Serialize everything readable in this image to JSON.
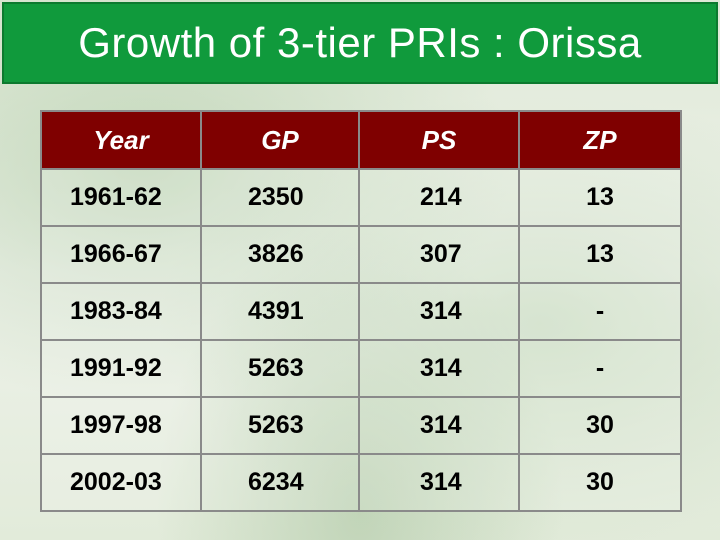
{
  "title": "Growth of 3-tier PRIs : Orissa",
  "table": {
    "headers": [
      "Year",
      "GP",
      "PS",
      "ZP"
    ],
    "rows": [
      [
        "1961-62",
        "2350",
        "214",
        "13"
      ],
      [
        "1966-67",
        "3826",
        "307",
        "13"
      ],
      [
        "1983-84",
        "4391",
        "314",
        "-"
      ],
      [
        "1991-92",
        "5263",
        "314",
        "-"
      ],
      [
        "1997-98",
        "5263",
        "314",
        "30"
      ],
      [
        "2002-03",
        "6234",
        "314",
        "30"
      ]
    ]
  },
  "colors": {
    "title_bar": "#109a3c",
    "header_bg": "#7f0000",
    "background": "#e9efe3"
  }
}
